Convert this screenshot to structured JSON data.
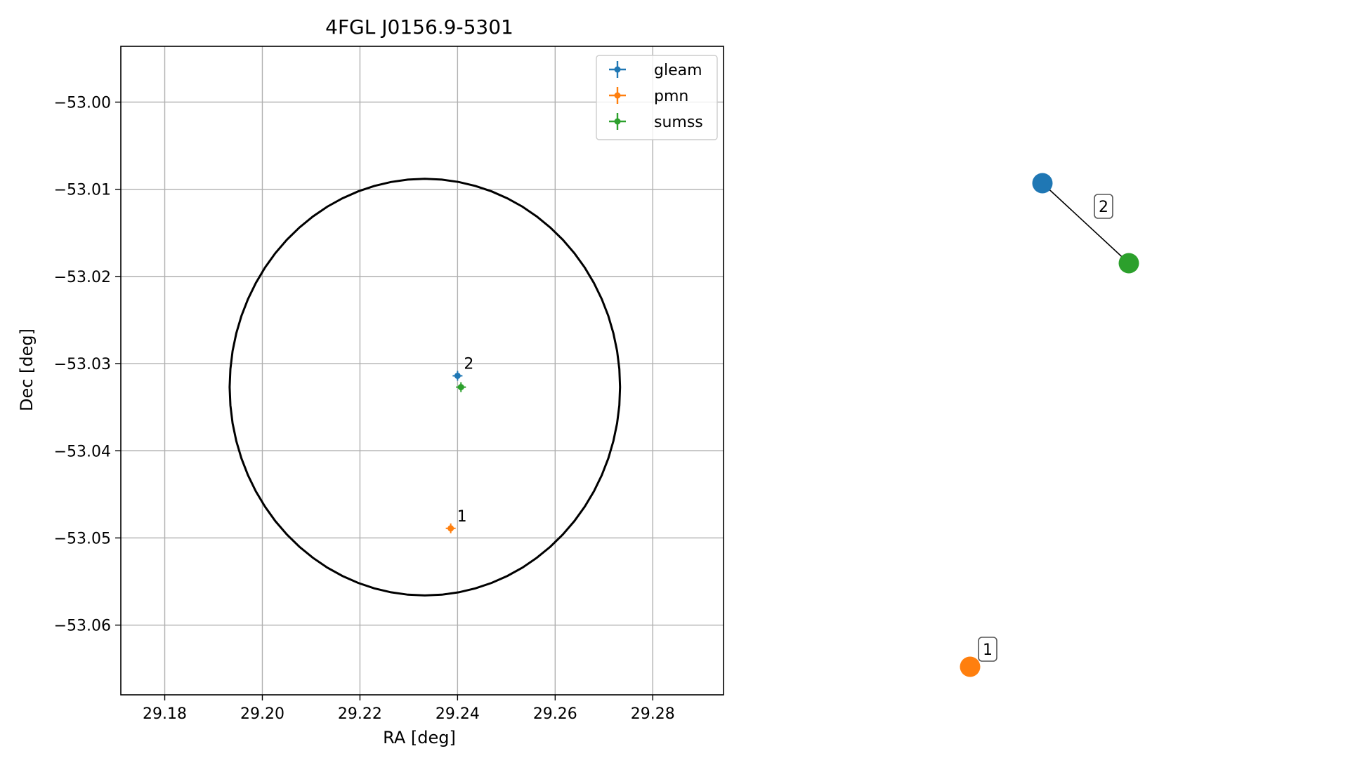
{
  "chart_data": [
    {
      "type": "scatter",
      "title": "4FGL J0156.9-5301",
      "xlabel": "RA [deg]",
      "ylabel": "Dec [deg]",
      "xlim": [
        29.171,
        29.2945
      ],
      "ylim": [
        -53.068,
        -52.9936
      ],
      "x_ticks": [
        29.18,
        29.2,
        29.22,
        29.24,
        29.26,
        29.28
      ],
      "x_tick_labels": [
        "29.18",
        "29.20",
        "29.22",
        "29.24",
        "29.26",
        "29.28"
      ],
      "y_ticks": [
        -53.0,
        -53.01,
        -53.02,
        -53.03,
        -53.04,
        -53.05,
        -53.06
      ],
      "y_tick_labels": [
        "−53.00",
        "−53.01",
        "−53.02",
        "−53.03",
        "−53.04",
        "−53.05",
        "−53.06"
      ],
      "grid": true,
      "legend_position": "top-right",
      "series": [
        {
          "name": "gleam",
          "color": "#1f77b4",
          "points": [
            {
              "x": 29.24,
              "y": -53.0314
            }
          ]
        },
        {
          "name": "pmn",
          "color": "#ff7f0e",
          "points": [
            {
              "x": 29.2386,
              "y": -53.0489
            }
          ]
        },
        {
          "name": "sumss",
          "color": "#2ca02c",
          "points": [
            {
              "x": 29.2407,
              "y": -53.0327
            }
          ]
        }
      ],
      "annotations": [
        {
          "text": "2",
          "x": 29.24,
          "y": -53.0314
        },
        {
          "text": "1",
          "x": 29.2386,
          "y": -53.0489
        }
      ],
      "ellipse": {
        "center_ra": 29.2333,
        "center_dec": -53.0327,
        "semi_axis_ra": 0.04,
        "semi_axis_dec": 0.0239,
        "color": "#000000"
      }
    },
    {
      "type": "network",
      "nodes": [
        {
          "id": "gleam",
          "color": "#1f77b4"
        },
        {
          "id": "sumss",
          "color": "#2ca02c"
        },
        {
          "id": "pmn",
          "color": "#ff7f0e"
        }
      ],
      "edges": [
        {
          "source": "gleam",
          "target": "sumss"
        }
      ],
      "group_labels": [
        {
          "text": "2",
          "members": [
            "gleam",
            "sumss"
          ]
        },
        {
          "text": "1",
          "members": [
            "pmn"
          ]
        }
      ]
    }
  ]
}
